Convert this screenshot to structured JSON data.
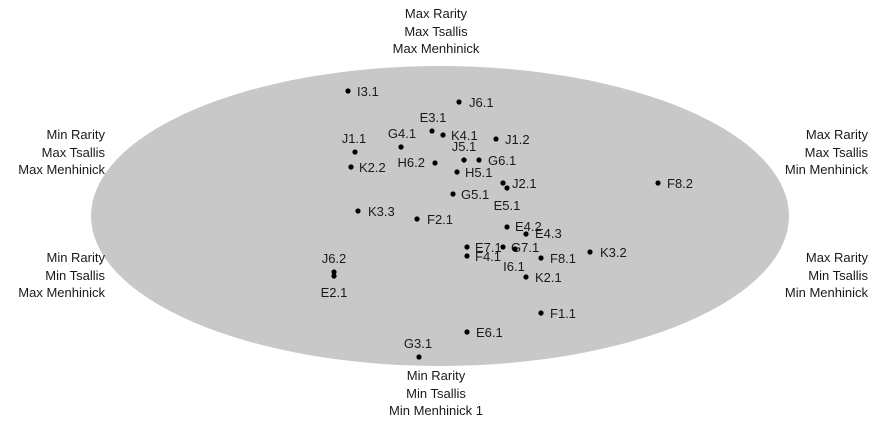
{
  "corner_labels": {
    "top": [
      "Max Rarity",
      "Max Tsallis",
      "Max Menhinick"
    ],
    "upper_left": [
      "Min Rarity",
      "Max Tsallis",
      "Max Menhinick"
    ],
    "upper_right": [
      "Max Rarity",
      "Max Tsallis",
      "Min Menhinick"
    ],
    "lower_left": [
      "Min Rarity",
      "Min Tsallis",
      "Max Menhinick"
    ],
    "lower_right": [
      "Max Rarity",
      "Min Tsallis",
      "Min Menhinick"
    ],
    "bottom": [
      "Min Rarity",
      "Min Tsallis",
      "Min Menhinick 1"
    ]
  },
  "colors": {
    "ellipse_fill": "#c8c8c8",
    "point": "#000000",
    "text": "#1a1a1a"
  },
  "points": [
    {
      "label": "I3.1"
    },
    {
      "label": "J6.1"
    },
    {
      "label": "E3.1"
    },
    {
      "label": "G4.1"
    },
    {
      "label": "K4.1"
    },
    {
      "label": "J1.2"
    },
    {
      "label": "J1.1"
    },
    {
      "label": "J5.1"
    },
    {
      "label": "H6.2"
    },
    {
      "label": "G6.1"
    },
    {
      "label": "K2.2"
    },
    {
      "label": "H5.1"
    },
    {
      "label": "J2.1"
    },
    {
      "label": "F8.2"
    },
    {
      "label": "G5.1"
    },
    {
      "label": "E5.1"
    },
    {
      "label": "K3.3"
    },
    {
      "label": "F2.1"
    },
    {
      "label": "E4.2"
    },
    {
      "label": "E4.3"
    },
    {
      "label": "E7.1"
    },
    {
      "label": "G7.1"
    },
    {
      "label": "K3.2"
    },
    {
      "label": "F4.1"
    },
    {
      "label": "F8.1"
    },
    {
      "label": "I6.1"
    },
    {
      "label": "J6.2"
    },
    {
      "label": "K2.1"
    },
    {
      "label": "E2.1"
    },
    {
      "label": "F1.1"
    },
    {
      "label": "E6.1"
    },
    {
      "label": "G3.1"
    }
  ]
}
